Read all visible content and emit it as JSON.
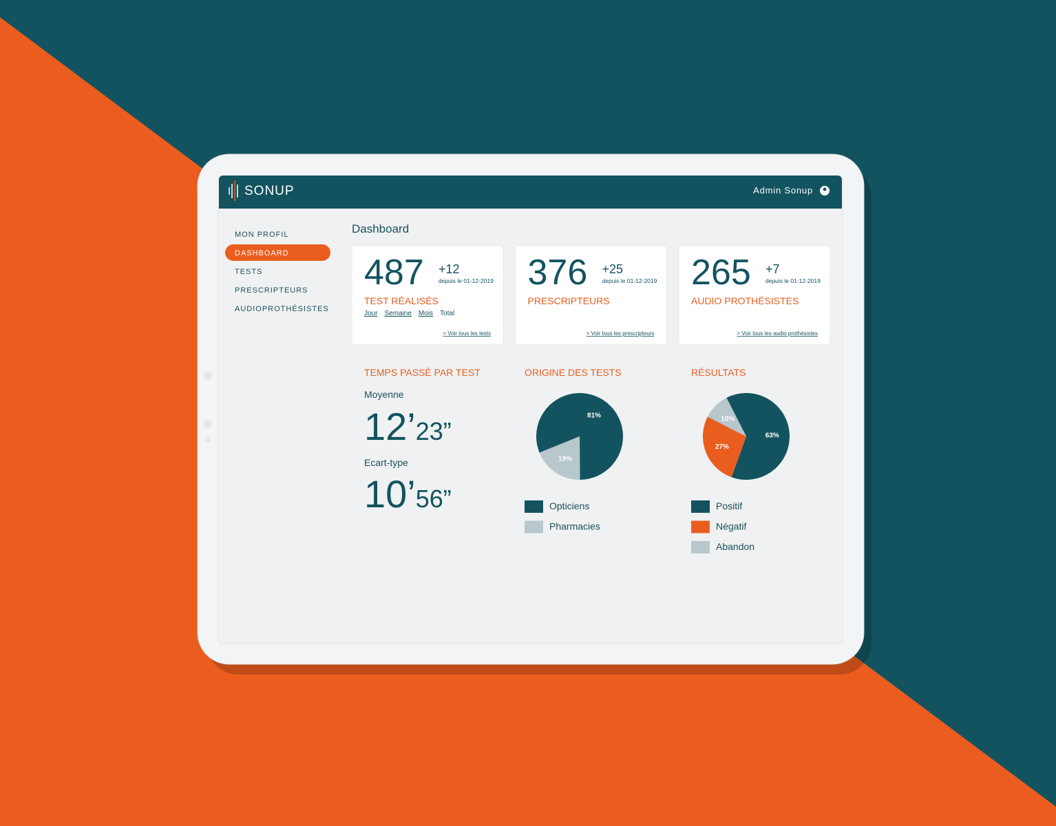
{
  "header": {
    "brand": "SONUP",
    "user": "Admin Sonup"
  },
  "nav": [
    "MON PROFIL",
    "DASHBOARD",
    "TESTS",
    "PRESCRIPTEURS",
    "AUDIOPROTHÉSISTES"
  ],
  "page_title": "Dashboard",
  "cards": [
    {
      "value": 487,
      "delta": "+12",
      "since": "depuis le 01-12-2019",
      "label": "TEST RÉALISÉS",
      "filters": [
        "Jour",
        "Semaine",
        "Mois",
        "Total"
      ],
      "link": "> Voir tous les tests"
    },
    {
      "value": 376,
      "delta": "+25",
      "since": "depuis le 01-12-2019",
      "label": "PRESCRIPTEURS",
      "link": "> Voir tous les prescripteurs"
    },
    {
      "value": 265,
      "delta": "+7",
      "since": "depuis le 01-12-2019",
      "label": "AUDIO PROTHÉSISTES",
      "link": "> Voir tous les audio prothésistes"
    }
  ],
  "time": {
    "title": "TEMPS PASSÉ PAR TEST",
    "mean_label": "Moyenne",
    "mean": [
      "12’",
      "23”"
    ],
    "std_label": "Ecart-type",
    "std": [
      "10’",
      "56”"
    ]
  },
  "chart_data": [
    {
      "type": "pie",
      "title": "ORIGINE DES TESTS",
      "categories": [
        "Opticiens",
        "Pharmacies"
      ],
      "values": [
        81,
        19
      ],
      "value_labels": [
        "81%",
        "19%"
      ],
      "colors": [
        "#12535f",
        "#b7c7cc"
      ]
    },
    {
      "type": "pie",
      "title": "RÉSULTATS",
      "categories": [
        "Positif",
        "Négatif",
        "Abandon"
      ],
      "values": [
        63,
        27,
        10
      ],
      "value_labels": [
        "63%",
        "27%",
        "10%"
      ],
      "colors": [
        "#12535f",
        "#e95e1f",
        "#b7c7cc"
      ]
    }
  ]
}
